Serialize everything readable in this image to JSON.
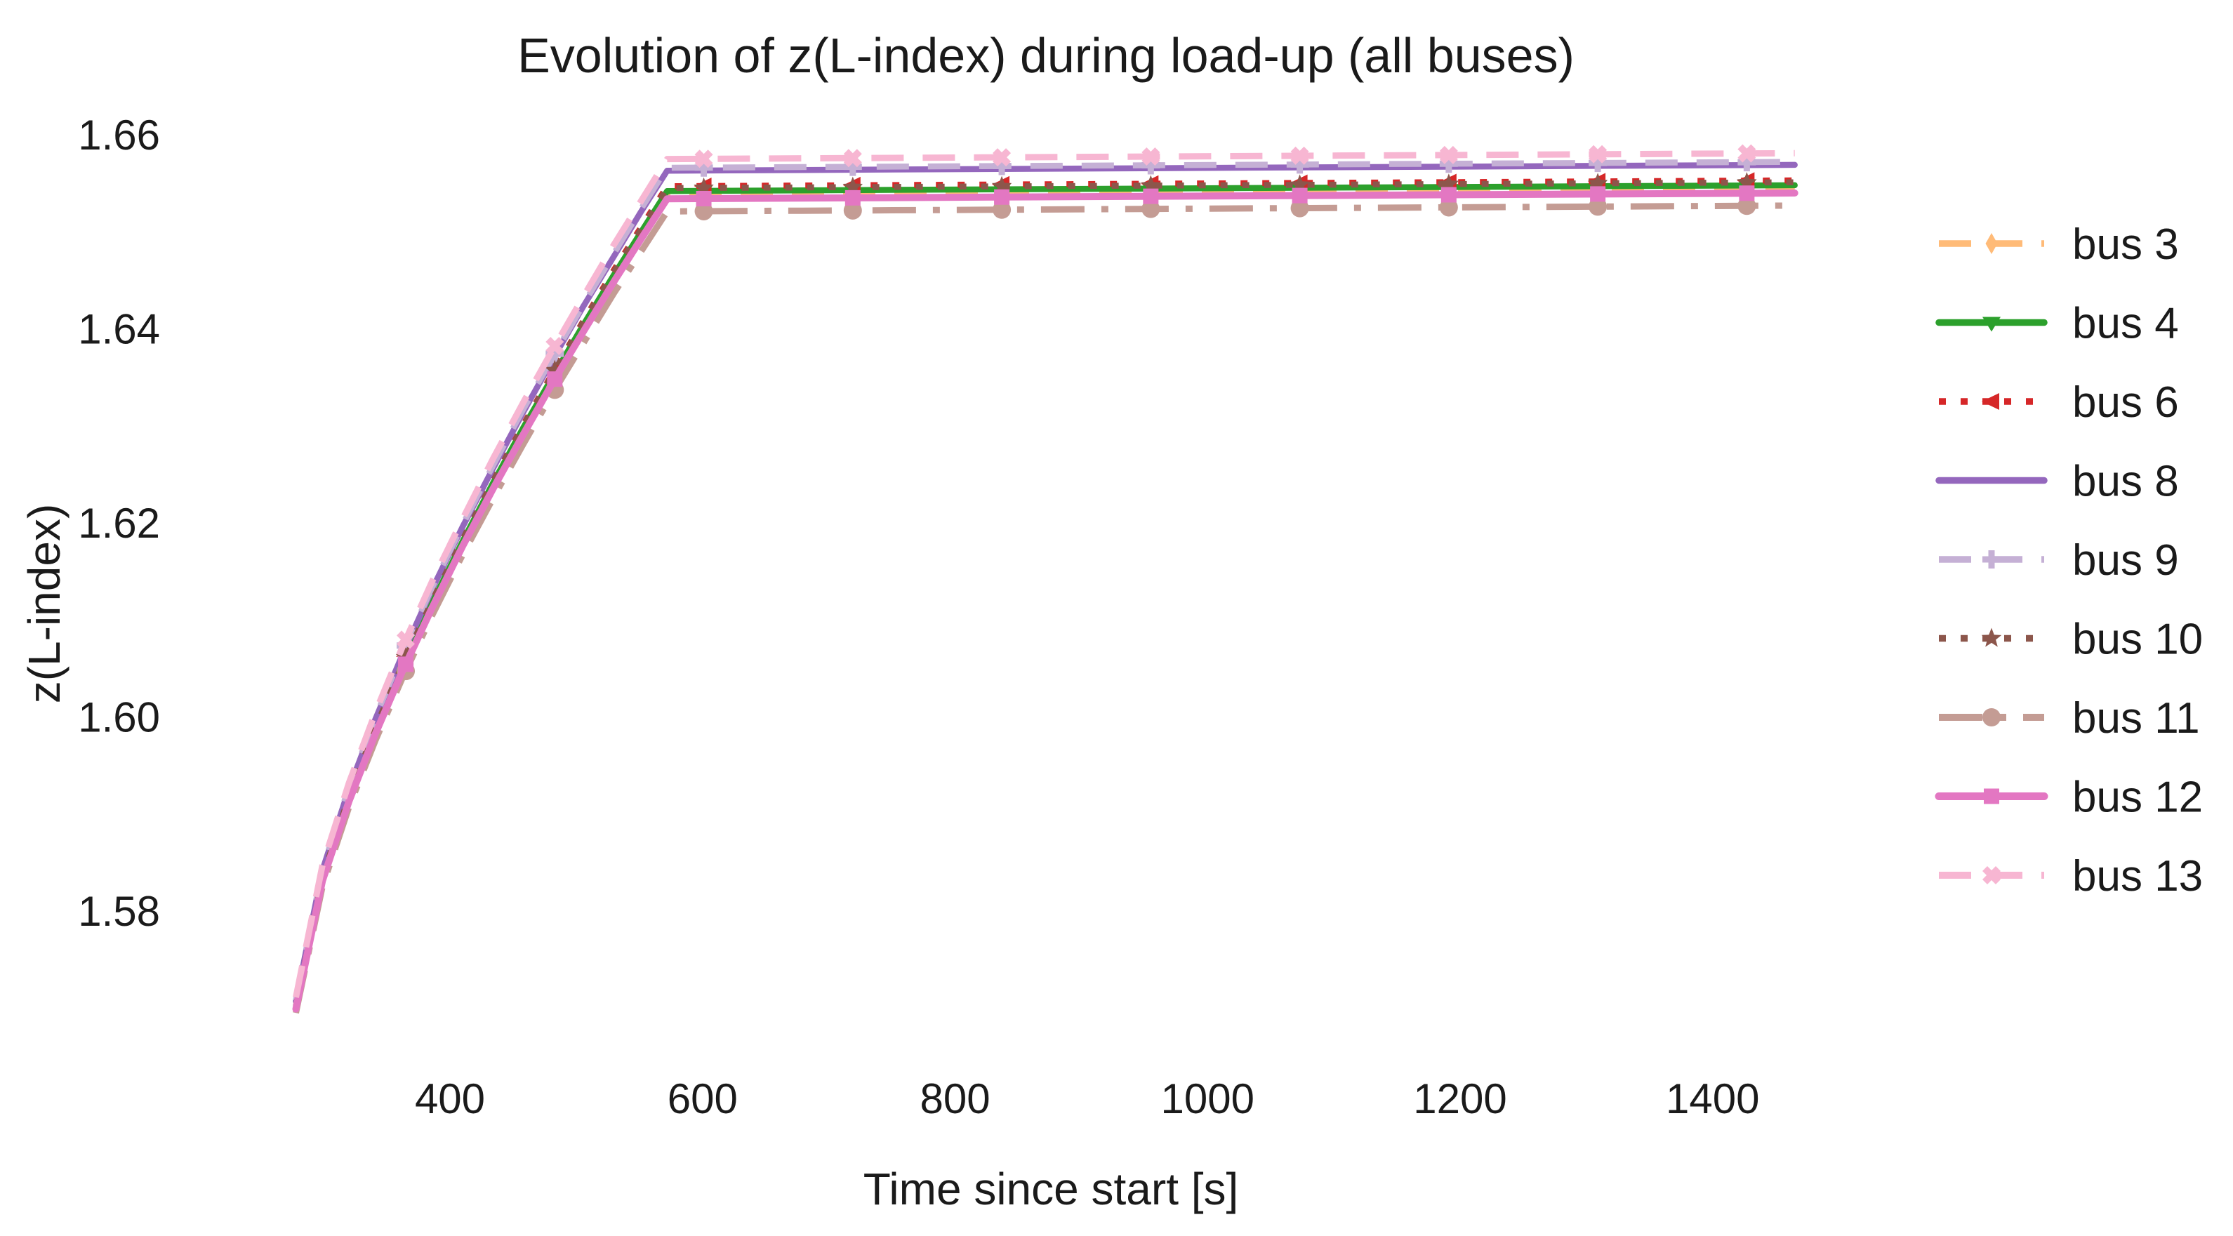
{
  "figure": {
    "title": "Evolution of z(L-index) during load-up (all buses)"
  },
  "axes": {
    "xlabel": "Time since start [s]",
    "ylabel": "z(L-index)"
  },
  "chart_data": {
    "type": "line",
    "title": "Evolution of z(L-index) during load-up (all buses)",
    "xlabel": "Time since start [s]",
    "ylabel": "z(L-index)",
    "x_ticks": [
      400,
      600,
      800,
      1000,
      1200,
      1400
    ],
    "y_ticks": [
      1.58,
      1.6,
      1.62,
      1.64,
      1.66
    ],
    "x_range": [
      270,
      1465
    ],
    "y_range": [
      1.565,
      1.662
    ],
    "grid": false,
    "legend_position": "right-outside",
    "marker_times": [
      365,
      483,
      601,
      719,
      837,
      955,
      1073,
      1191,
      1309,
      1427
    ],
    "series": [
      {
        "name": "bus 3",
        "color": "#FFBB78",
        "linestyle": "dashed",
        "marker": "thin-diamond",
        "linewidth": 8.5,
        "points": [
          [
            278,
            1.5699
          ],
          [
            299,
            1.5831
          ],
          [
            320,
            1.5914
          ],
          [
            341,
            1.5984
          ],
          [
            362,
            1.6048
          ],
          [
            386,
            1.6115
          ],
          [
            410,
            1.6177
          ],
          [
            434,
            1.6237
          ],
          [
            458,
            1.6293
          ],
          [
            482,
            1.6348
          ],
          [
            506,
            1.64
          ],
          [
            530,
            1.6451
          ],
          [
            551,
            1.6495
          ],
          [
            572,
            1.6537
          ],
          [
            1465,
            1.6543
          ]
        ]
      },
      {
        "name": "bus 4",
        "color": "#2CA02C",
        "linestyle": "solid",
        "marker": "triangle-down",
        "linewidth": 8.5,
        "points": [
          [
            278,
            1.5701
          ],
          [
            299,
            1.5834
          ],
          [
            320,
            1.5916
          ],
          [
            341,
            1.5987
          ],
          [
            362,
            1.6051
          ],
          [
            386,
            1.6118
          ],
          [
            410,
            1.6181
          ],
          [
            434,
            1.6241
          ],
          [
            458,
            1.6298
          ],
          [
            482,
            1.6352
          ],
          [
            506,
            1.6405
          ],
          [
            530,
            1.6456
          ],
          [
            551,
            1.6499
          ],
          [
            572,
            1.6542
          ],
          [
            1465,
            1.6548
          ]
        ]
      },
      {
        "name": "bus 6",
        "color": "#D62728",
        "linestyle": "dotted",
        "marker": "triangle-left",
        "linewidth": 8.5,
        "points": [
          [
            278,
            1.5702
          ],
          [
            299,
            1.5835
          ],
          [
            320,
            1.5918
          ],
          [
            341,
            1.599
          ],
          [
            362,
            1.6054
          ],
          [
            386,
            1.6121
          ],
          [
            410,
            1.6184
          ],
          [
            434,
            1.6244
          ],
          [
            458,
            1.6301
          ],
          [
            482,
            1.6356
          ],
          [
            506,
            1.6409
          ],
          [
            530,
            1.6461
          ],
          [
            551,
            1.6504
          ],
          [
            572,
            1.6547
          ],
          [
            1465,
            1.6553
          ]
        ]
      },
      {
        "name": "bus 8",
        "color": "#9467BD",
        "linestyle": "solid",
        "marker": "none",
        "linewidth": 8.5,
        "points": [
          [
            278,
            1.5707
          ],
          [
            299,
            1.5842
          ],
          [
            320,
            1.5926
          ],
          [
            341,
            1.5998
          ],
          [
            362,
            1.6063
          ],
          [
            386,
            1.6132
          ],
          [
            410,
            1.6196
          ],
          [
            434,
            1.6256
          ],
          [
            458,
            1.6314
          ],
          [
            482,
            1.637
          ],
          [
            506,
            1.6424
          ],
          [
            530,
            1.6475
          ],
          [
            551,
            1.652
          ],
          [
            572,
            1.6563
          ],
          [
            1465,
            1.6569
          ]
        ]
      },
      {
        "name": "bus 9",
        "color": "#C5B0D5",
        "linestyle": "dashed",
        "marker": "plus",
        "linewidth": 8.5,
        "points": [
          [
            278,
            1.5708
          ],
          [
            299,
            1.5843
          ],
          [
            320,
            1.5928
          ],
          [
            341,
            1.6
          ],
          [
            362,
            1.6065
          ],
          [
            386,
            1.6134
          ],
          [
            410,
            1.6198
          ],
          [
            434,
            1.6259
          ],
          [
            458,
            1.6317
          ],
          [
            482,
            1.6372
          ],
          [
            506,
            1.6426
          ],
          [
            530,
            1.6478
          ],
          [
            551,
            1.6523
          ],
          [
            572,
            1.6566
          ],
          [
            1465,
            1.6572
          ]
        ]
      },
      {
        "name": "bus 10",
        "color": "#8C564B",
        "linestyle": "dotted",
        "marker": "star",
        "linewidth": 8.5,
        "points": [
          [
            278,
            1.5702
          ],
          [
            299,
            1.5835
          ],
          [
            320,
            1.5918
          ],
          [
            341,
            1.5989
          ],
          [
            362,
            1.6053
          ],
          [
            386,
            1.612
          ],
          [
            410,
            1.6183
          ],
          [
            434,
            1.6243
          ],
          [
            458,
            1.63
          ],
          [
            482,
            1.6355
          ],
          [
            506,
            1.6408
          ],
          [
            530,
            1.6459
          ],
          [
            551,
            1.6502
          ],
          [
            572,
            1.6545
          ],
          [
            1465,
            1.6551
          ]
        ]
      },
      {
        "name": "bus 11",
        "color": "#C49C94",
        "linestyle": "dashdot",
        "marker": "circle",
        "linewidth": 9,
        "points": [
          [
            278,
            1.5695
          ],
          [
            299,
            1.5825
          ],
          [
            320,
            1.5907
          ],
          [
            341,
            1.5976
          ],
          [
            362,
            1.6039
          ],
          [
            386,
            1.6105
          ],
          [
            410,
            1.6167
          ],
          [
            434,
            1.6225
          ],
          [
            458,
            1.6281
          ],
          [
            482,
            1.6335
          ],
          [
            506,
            1.6386
          ],
          [
            530,
            1.6437
          ],
          [
            551,
            1.6479
          ],
          [
            572,
            1.6521
          ],
          [
            1465,
            1.6527
          ]
        ]
      },
      {
        "name": "bus 12",
        "color": "#E377C2",
        "linestyle": "solid",
        "marker": "square",
        "linewidth": 10,
        "points": [
          [
            278,
            1.5699
          ],
          [
            299,
            1.5831
          ],
          [
            320,
            1.5913
          ],
          [
            341,
            1.5983
          ],
          [
            362,
            1.6046
          ],
          [
            386,
            1.6113
          ],
          [
            410,
            1.6176
          ],
          [
            434,
            1.6235
          ],
          [
            458,
            1.6291
          ],
          [
            482,
            1.6346
          ],
          [
            506,
            1.6398
          ],
          [
            530,
            1.6449
          ],
          [
            551,
            1.6492
          ],
          [
            572,
            1.6534
          ],
          [
            1465,
            1.654
          ]
        ]
      },
      {
        "name": "bus 13",
        "color": "#F7B6D2",
        "linestyle": "dashed",
        "marker": "x",
        "linewidth": 9,
        "points": [
          [
            278,
            1.5711
          ],
          [
            299,
            1.5847
          ],
          [
            320,
            1.5932
          ],
          [
            341,
            1.6005
          ],
          [
            362,
            1.6071
          ],
          [
            386,
            1.614
          ],
          [
            410,
            1.6204
          ],
          [
            434,
            1.6266
          ],
          [
            458,
            1.6324
          ],
          [
            482,
            1.638
          ],
          [
            506,
            1.6434
          ],
          [
            530,
            1.6487
          ],
          [
            551,
            1.6531
          ],
          [
            572,
            1.6575
          ],
          [
            1465,
            1.6581
          ]
        ]
      }
    ]
  }
}
